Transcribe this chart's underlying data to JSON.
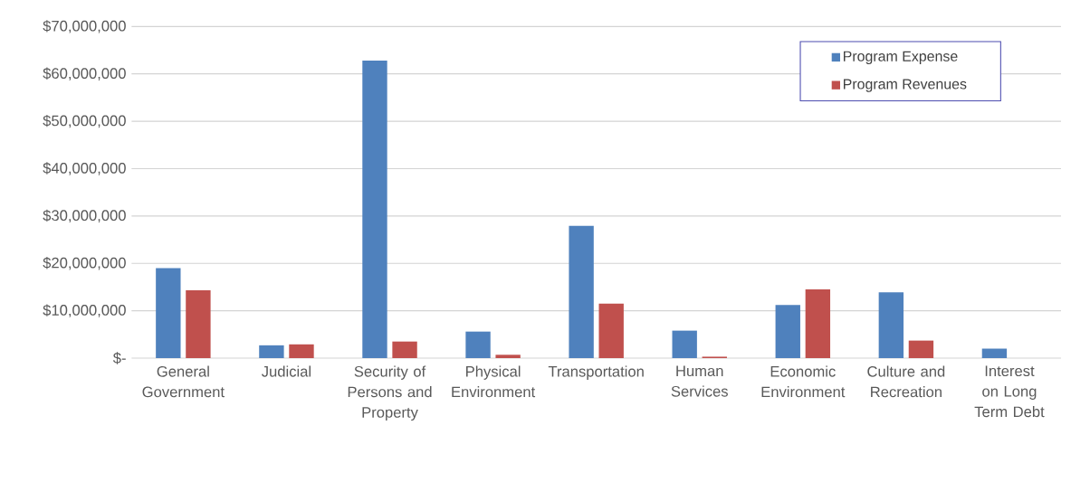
{
  "chart_data": {
    "type": "bar",
    "categories": [
      "General Government",
      "Judicial",
      "Security of Persons and Property",
      "Physical Environment",
      "Transportation",
      "Human Services",
      "Economic Environment",
      "Culture and Recreation",
      "Interest on Long Term Debt"
    ],
    "series": [
      {
        "name": "Program Expense",
        "color": "#4f81bd",
        "values": [
          19000000,
          2700000,
          62800000,
          5600000,
          27900000,
          5800000,
          11200000,
          13900000,
          2000000
        ]
      },
      {
        "name": "Program Revenues",
        "color": "#c0504d",
        "values": [
          14300000,
          2900000,
          3500000,
          700000,
          11500000,
          300000,
          14500000,
          3700000,
          0
        ]
      }
    ],
    "ylim": [
      0,
      70000000
    ],
    "yticks": [
      {
        "value": 0,
        "label": "$-"
      },
      {
        "value": 10000000,
        "label": "$10,000,000"
      },
      {
        "value": 20000000,
        "label": "$20,000,000"
      },
      {
        "value": 30000000,
        "label": "$30,000,000"
      },
      {
        "value": 40000000,
        "label": "$40,000,000"
      },
      {
        "value": 50000000,
        "label": "$50,000,000"
      },
      {
        "value": 60000000,
        "label": "$60,000,000"
      },
      {
        "value": 70000000,
        "label": "$70,000,000"
      }
    ],
    "grid": "y",
    "legend": "top right"
  }
}
